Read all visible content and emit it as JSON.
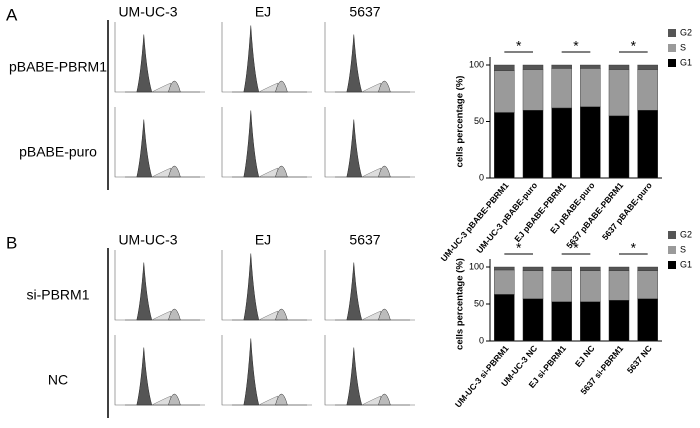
{
  "panels": [
    {
      "label": "A",
      "columns": [
        "UM-UC-3",
        "EJ",
        "5637"
      ],
      "rows": [
        "pBABE-PBRM1",
        "pBABE-puro"
      ]
    },
    {
      "label": "B",
      "columns": [
        "UM-UC-3",
        "EJ",
        "5637"
      ],
      "rows": [
        "si-PBRM1",
        "NC"
      ]
    }
  ],
  "chart_data": [
    {
      "type": "stacked-bar",
      "y_label": "cells percentage (%)",
      "categories": [
        "UM-UC-3 pBABE-PBRM1",
        "UM-UC-3 pBABE-puro",
        "EJ pBABE-PBRM1",
        "EJ pBABE-puro",
        "5637 pBABE-PBRM1",
        "5637 pBABE-puro"
      ],
      "series": [
        {
          "name": "G1",
          "color": "#000000",
          "values": [
            58,
            60,
            62,
            63,
            55,
            60
          ]
        },
        {
          "name": "S",
          "color": "#9a9a9a",
          "values": [
            37,
            36,
            35,
            34,
            41,
            36
          ]
        },
        {
          "name": "G2",
          "color": "#555555",
          "values": [
            5,
            4,
            3,
            3,
            4,
            4
          ]
        }
      ],
      "ylim": [
        0,
        100
      ],
      "yticks": [
        0,
        50,
        100
      ],
      "annotations": [
        "*",
        "*",
        "*"
      ]
    },
    {
      "type": "stacked-bar",
      "y_label": "cells percentage (%)",
      "categories": [
        "UM-UC-3 si-PBRM1",
        "UM-UC-3 NC",
        "EJ si-PBRM1",
        "EJ NC",
        "5637 si-PBRM1",
        "5637 NC"
      ],
      "series": [
        {
          "name": "G1",
          "color": "#000000",
          "values": [
            63,
            57,
            53,
            53,
            55,
            57
          ]
        },
        {
          "name": "S",
          "color": "#9a9a9a",
          "values": [
            33,
            38,
            42,
            42,
            40,
            38
          ]
        },
        {
          "name": "G2",
          "color": "#555555",
          "values": [
            4,
            5,
            5,
            5,
            5,
            5
          ]
        }
      ],
      "ylim": [
        0,
        100
      ],
      "yticks": [
        0,
        50,
        100
      ],
      "annotations": [
        "*",
        "*",
        "*"
      ]
    }
  ]
}
